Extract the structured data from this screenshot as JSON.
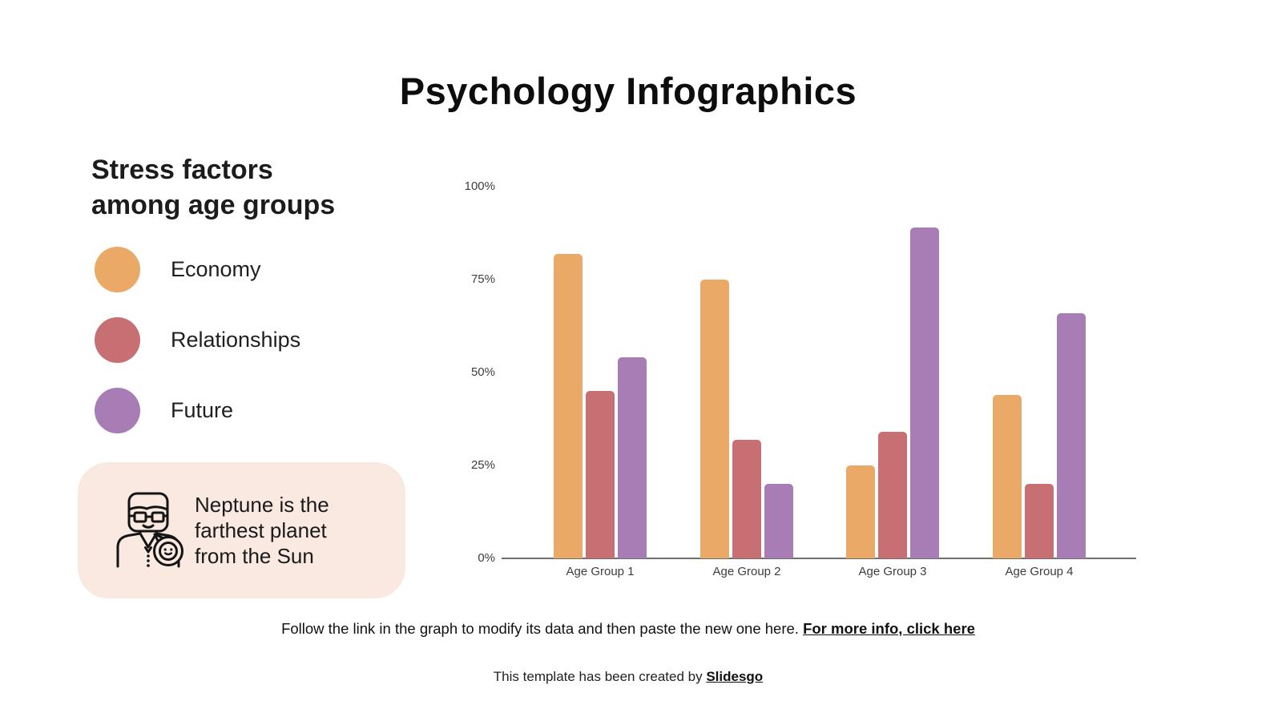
{
  "slide": {
    "title": "Psychology Infographics",
    "section_heading": "Stress factors\namong age groups"
  },
  "legend": {
    "items": [
      {
        "label": "Economy"
      },
      {
        "label": "Relationships"
      },
      {
        "label": "Future"
      }
    ]
  },
  "fact_box": {
    "text": "Neptune is the\nfarthest planet\nfrom the Sun",
    "bg_color": "#FAE9E0",
    "icon": "psychologist-with-speech-bubble-icon"
  },
  "footer": {
    "instruction_text": "Follow the link in the graph to modify its data and then paste the new one here. ",
    "instruction_link": "For more info, click here",
    "credit_text": "This template has been created by ",
    "credit_link": "Slidesgo"
  },
  "chart_data": {
    "type": "bar",
    "title": "Stress factors among age groups",
    "categories": [
      "Age Group 1",
      "Age Group 2",
      "Age Group 3",
      "Age Group 4"
    ],
    "series": [
      {
        "name": "Economy",
        "color": "#EBA967",
        "values": [
          82,
          75,
          25,
          44
        ]
      },
      {
        "name": "Relationships",
        "color": "#C76F73",
        "values": [
          45,
          32,
          34,
          20
        ]
      },
      {
        "name": "Future",
        "color": "#A87CB4",
        "values": [
          54,
          20,
          89,
          66
        ]
      }
    ],
    "y_ticks": [
      "100%",
      "75%",
      "50%",
      "25%",
      "0%"
    ],
    "ylim": [
      0,
      100
    ],
    "grid": false,
    "legend_position": "left",
    "axis_color": "#6E6E6E",
    "tick_text_color": "#3D3D3D"
  }
}
